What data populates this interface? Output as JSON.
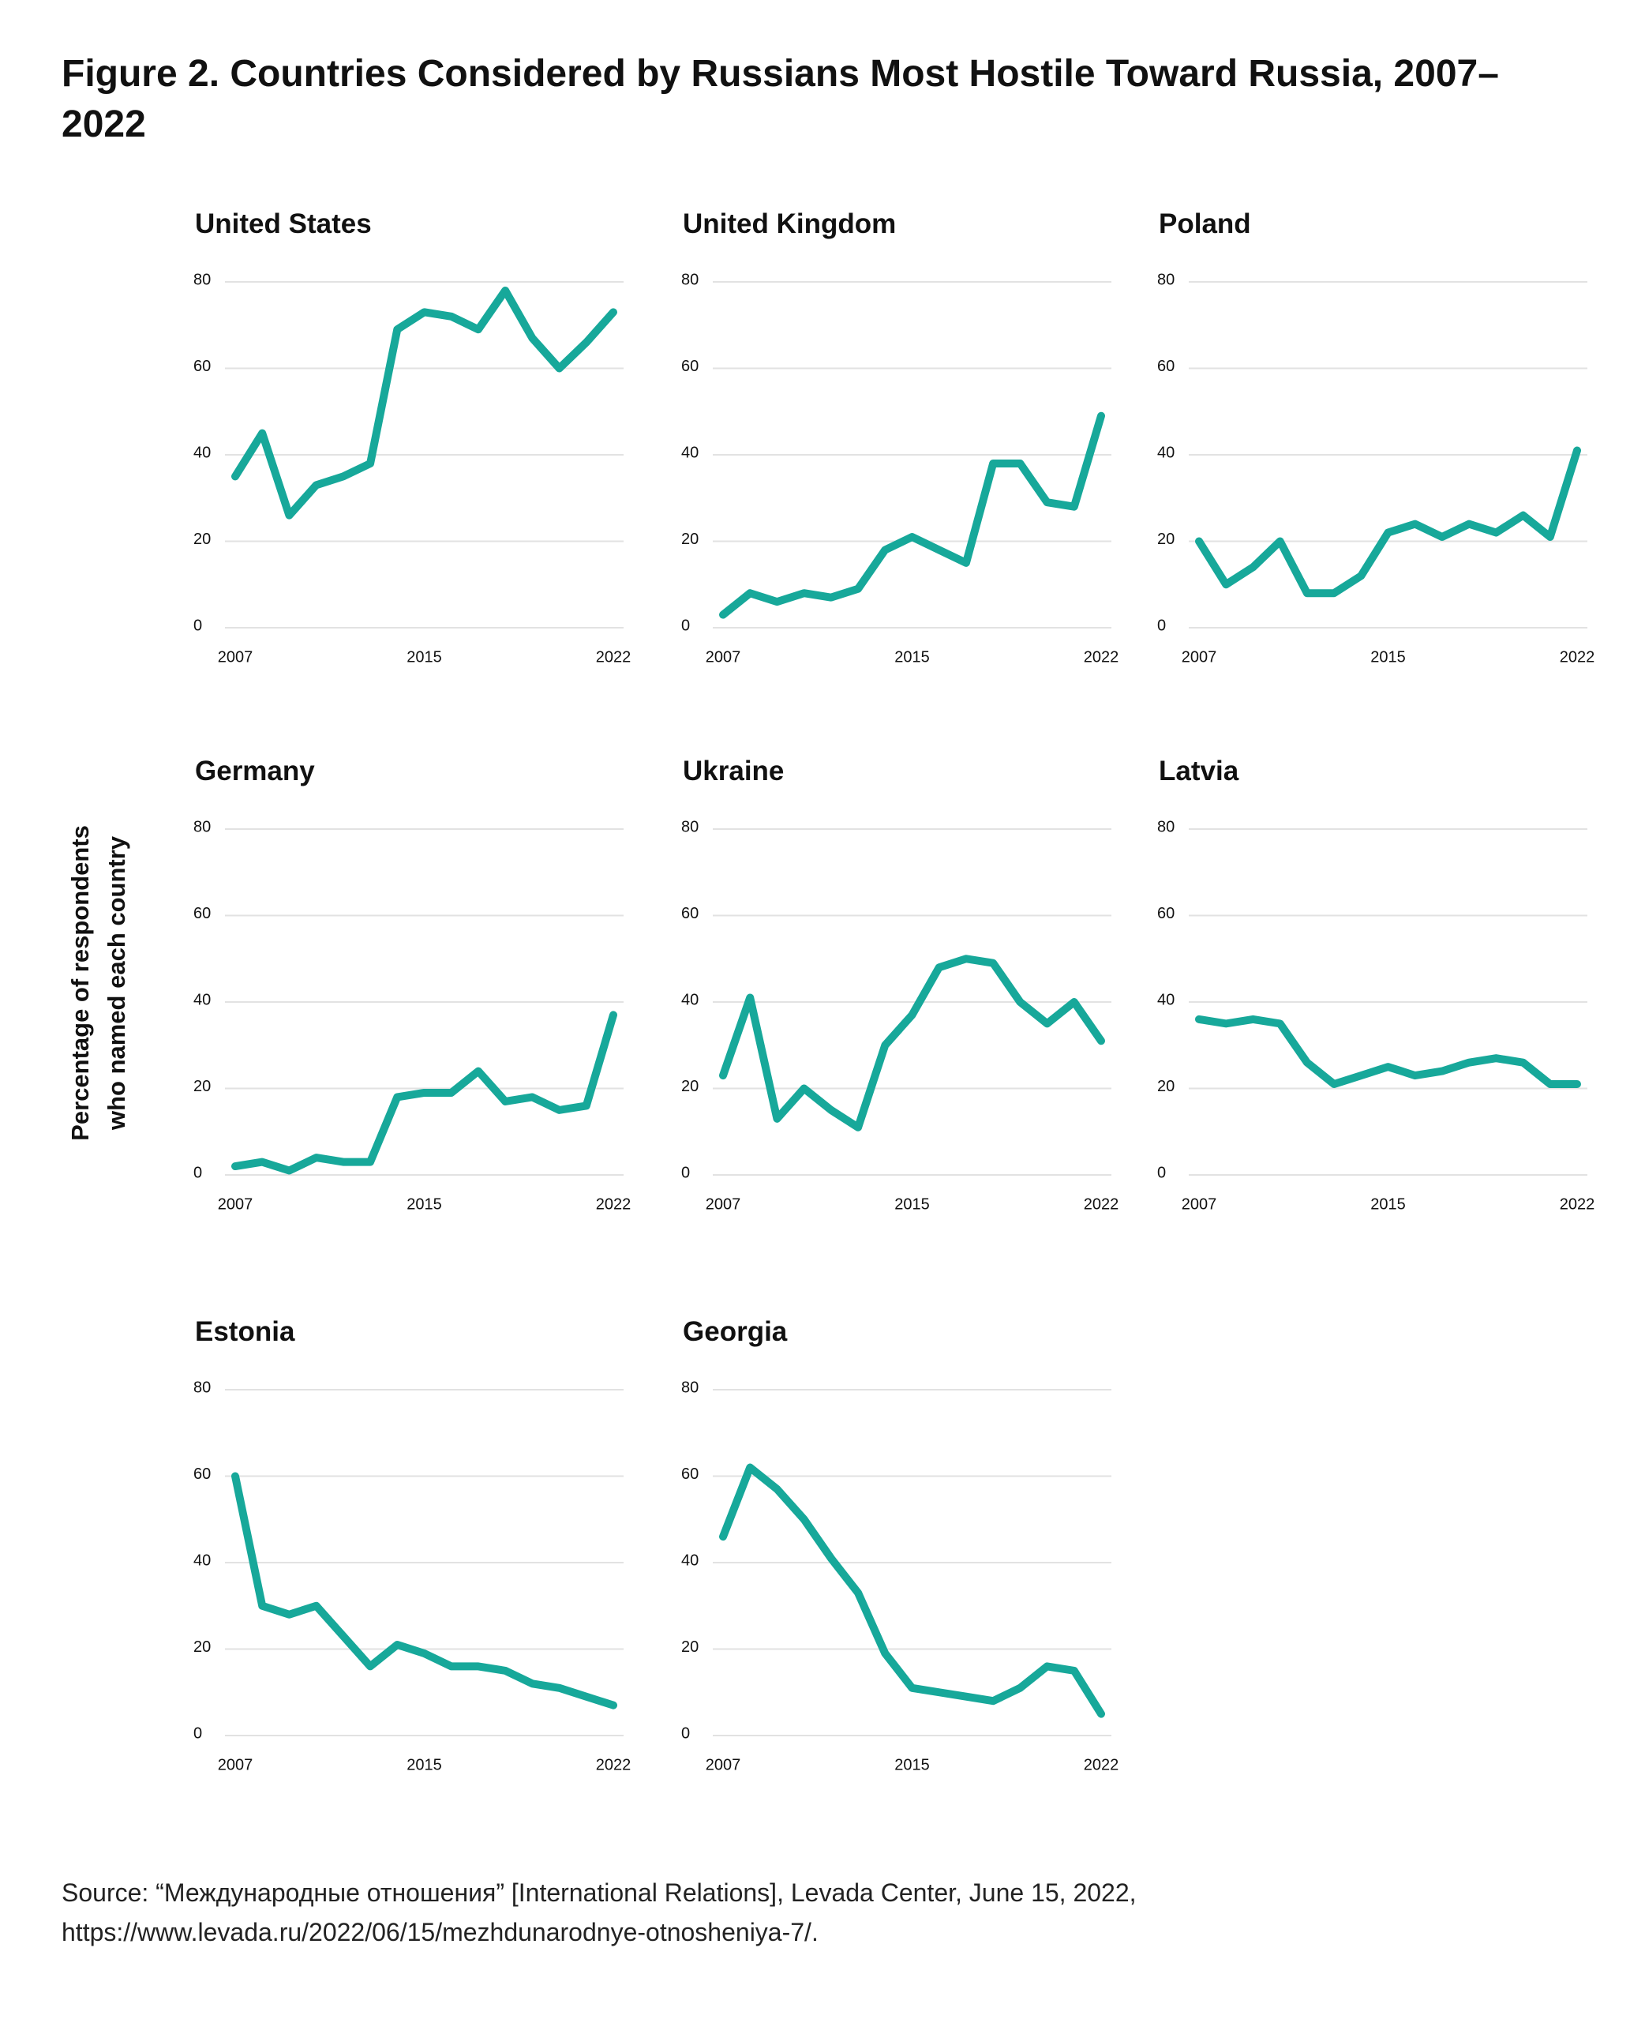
{
  "title": "Figure 2. Countries Considered by Russians Most Hostile Toward Russia, 2007–2022",
  "y_axis_label": [
    "Percentage of respondents",
    "who named each country"
  ],
  "source": [
    "Source: “Международные отношения” [International Relations], Levada Center, June 15, 2022,",
    "https://www.levada.ru/2022/06/15/mezhdunarodnye-otnosheniya-7/."
  ],
  "chart_data": [
    {
      "type": "line",
      "title": "United States",
      "categories": [
        "2007",
        null,
        null,
        null,
        null,
        null,
        null,
        "2015",
        null,
        null,
        null,
        null,
        null,
        null,
        "2022"
      ],
      "values": [
        35,
        45,
        26,
        33,
        35,
        38,
        69,
        73,
        72,
        69,
        78,
        67,
        60,
        66,
        73
      ],
      "color": "#17a89a",
      "ylim": [
        0,
        80
      ],
      "yticks": [
        0,
        20,
        40,
        60,
        80
      ],
      "grid": true
    },
    {
      "type": "line",
      "title": "United Kingdom",
      "categories": [
        "2007",
        null,
        null,
        null,
        null,
        null,
        null,
        "2015",
        null,
        null,
        null,
        null,
        null,
        null,
        "2022"
      ],
      "values": [
        3,
        8,
        6,
        8,
        7,
        9,
        18,
        21,
        18,
        15,
        38,
        38,
        29,
        28,
        49
      ],
      "color": "#17a89a",
      "ylim": [
        0,
        80
      ],
      "yticks": [
        0,
        20,
        40,
        60,
        80
      ],
      "grid": true
    },
    {
      "type": "line",
      "title": "Poland",
      "categories": [
        "2007",
        null,
        null,
        null,
        null,
        null,
        null,
        "2015",
        null,
        null,
        null,
        null,
        null,
        null,
        "2022"
      ],
      "values": [
        20,
        10,
        14,
        20,
        8,
        8,
        12,
        22,
        24,
        21,
        24,
        22,
        26,
        21,
        41
      ],
      "color": "#17a89a",
      "ylim": [
        0,
        80
      ],
      "yticks": [
        0,
        20,
        40,
        60,
        80
      ],
      "grid": true
    },
    {
      "type": "line",
      "title": "Germany",
      "categories": [
        "2007",
        null,
        null,
        null,
        null,
        null,
        null,
        "2015",
        null,
        null,
        null,
        null,
        null,
        null,
        "2022"
      ],
      "values": [
        2,
        3,
        1,
        4,
        3,
        3,
        18,
        19,
        19,
        24,
        17,
        18,
        15,
        16,
        37
      ],
      "color": "#17a89a",
      "ylim": [
        0,
        80
      ],
      "yticks": [
        0,
        20,
        40,
        60,
        80
      ],
      "grid": true
    },
    {
      "type": "line",
      "title": "Ukraine",
      "categories": [
        "2007",
        null,
        null,
        null,
        null,
        null,
        null,
        "2015",
        null,
        null,
        null,
        null,
        null,
        null,
        "2022"
      ],
      "values": [
        23,
        41,
        13,
        20,
        15,
        11,
        30,
        37,
        48,
        50,
        49,
        40,
        35,
        40,
        31
      ],
      "color": "#17a89a",
      "ylim": [
        0,
        80
      ],
      "yticks": [
        0,
        20,
        40,
        60,
        80
      ],
      "grid": true
    },
    {
      "type": "line",
      "title": "Latvia",
      "categories": [
        "2007",
        null,
        null,
        null,
        null,
        null,
        null,
        "2015",
        null,
        null,
        null,
        null,
        null,
        null,
        "2022"
      ],
      "values": [
        36,
        35,
        36,
        35,
        26,
        21,
        23,
        25,
        23,
        24,
        26,
        27,
        26,
        21,
        21
      ],
      "color": "#17a89a",
      "ylim": [
        0,
        80
      ],
      "yticks": [
        0,
        20,
        40,
        60,
        80
      ],
      "grid": true
    },
    {
      "type": "line",
      "title": "Estonia",
      "categories": [
        "2007",
        null,
        null,
        null,
        null,
        null,
        null,
        "2015",
        null,
        null,
        null,
        null,
        null,
        null,
        "2022"
      ],
      "values": [
        60,
        30,
        28,
        30,
        23,
        16,
        21,
        19,
        16,
        16,
        15,
        12,
        11,
        9,
        7
      ],
      "color": "#17a89a",
      "ylim": [
        0,
        80
      ],
      "yticks": [
        0,
        20,
        40,
        60,
        80
      ],
      "grid": true
    },
    {
      "type": "line",
      "title": "Georgia",
      "categories": [
        "2007",
        null,
        null,
        null,
        null,
        null,
        null,
        "2015",
        null,
        null,
        null,
        null,
        null,
        null,
        "2022"
      ],
      "values": [
        46,
        62,
        57,
        50,
        41,
        33,
        19,
        11,
        10,
        9,
        8,
        11,
        16,
        15,
        5
      ],
      "color": "#17a89a",
      "ylim": [
        0,
        80
      ],
      "yticks": [
        0,
        20,
        40,
        60,
        80
      ],
      "grid": true
    }
  ]
}
